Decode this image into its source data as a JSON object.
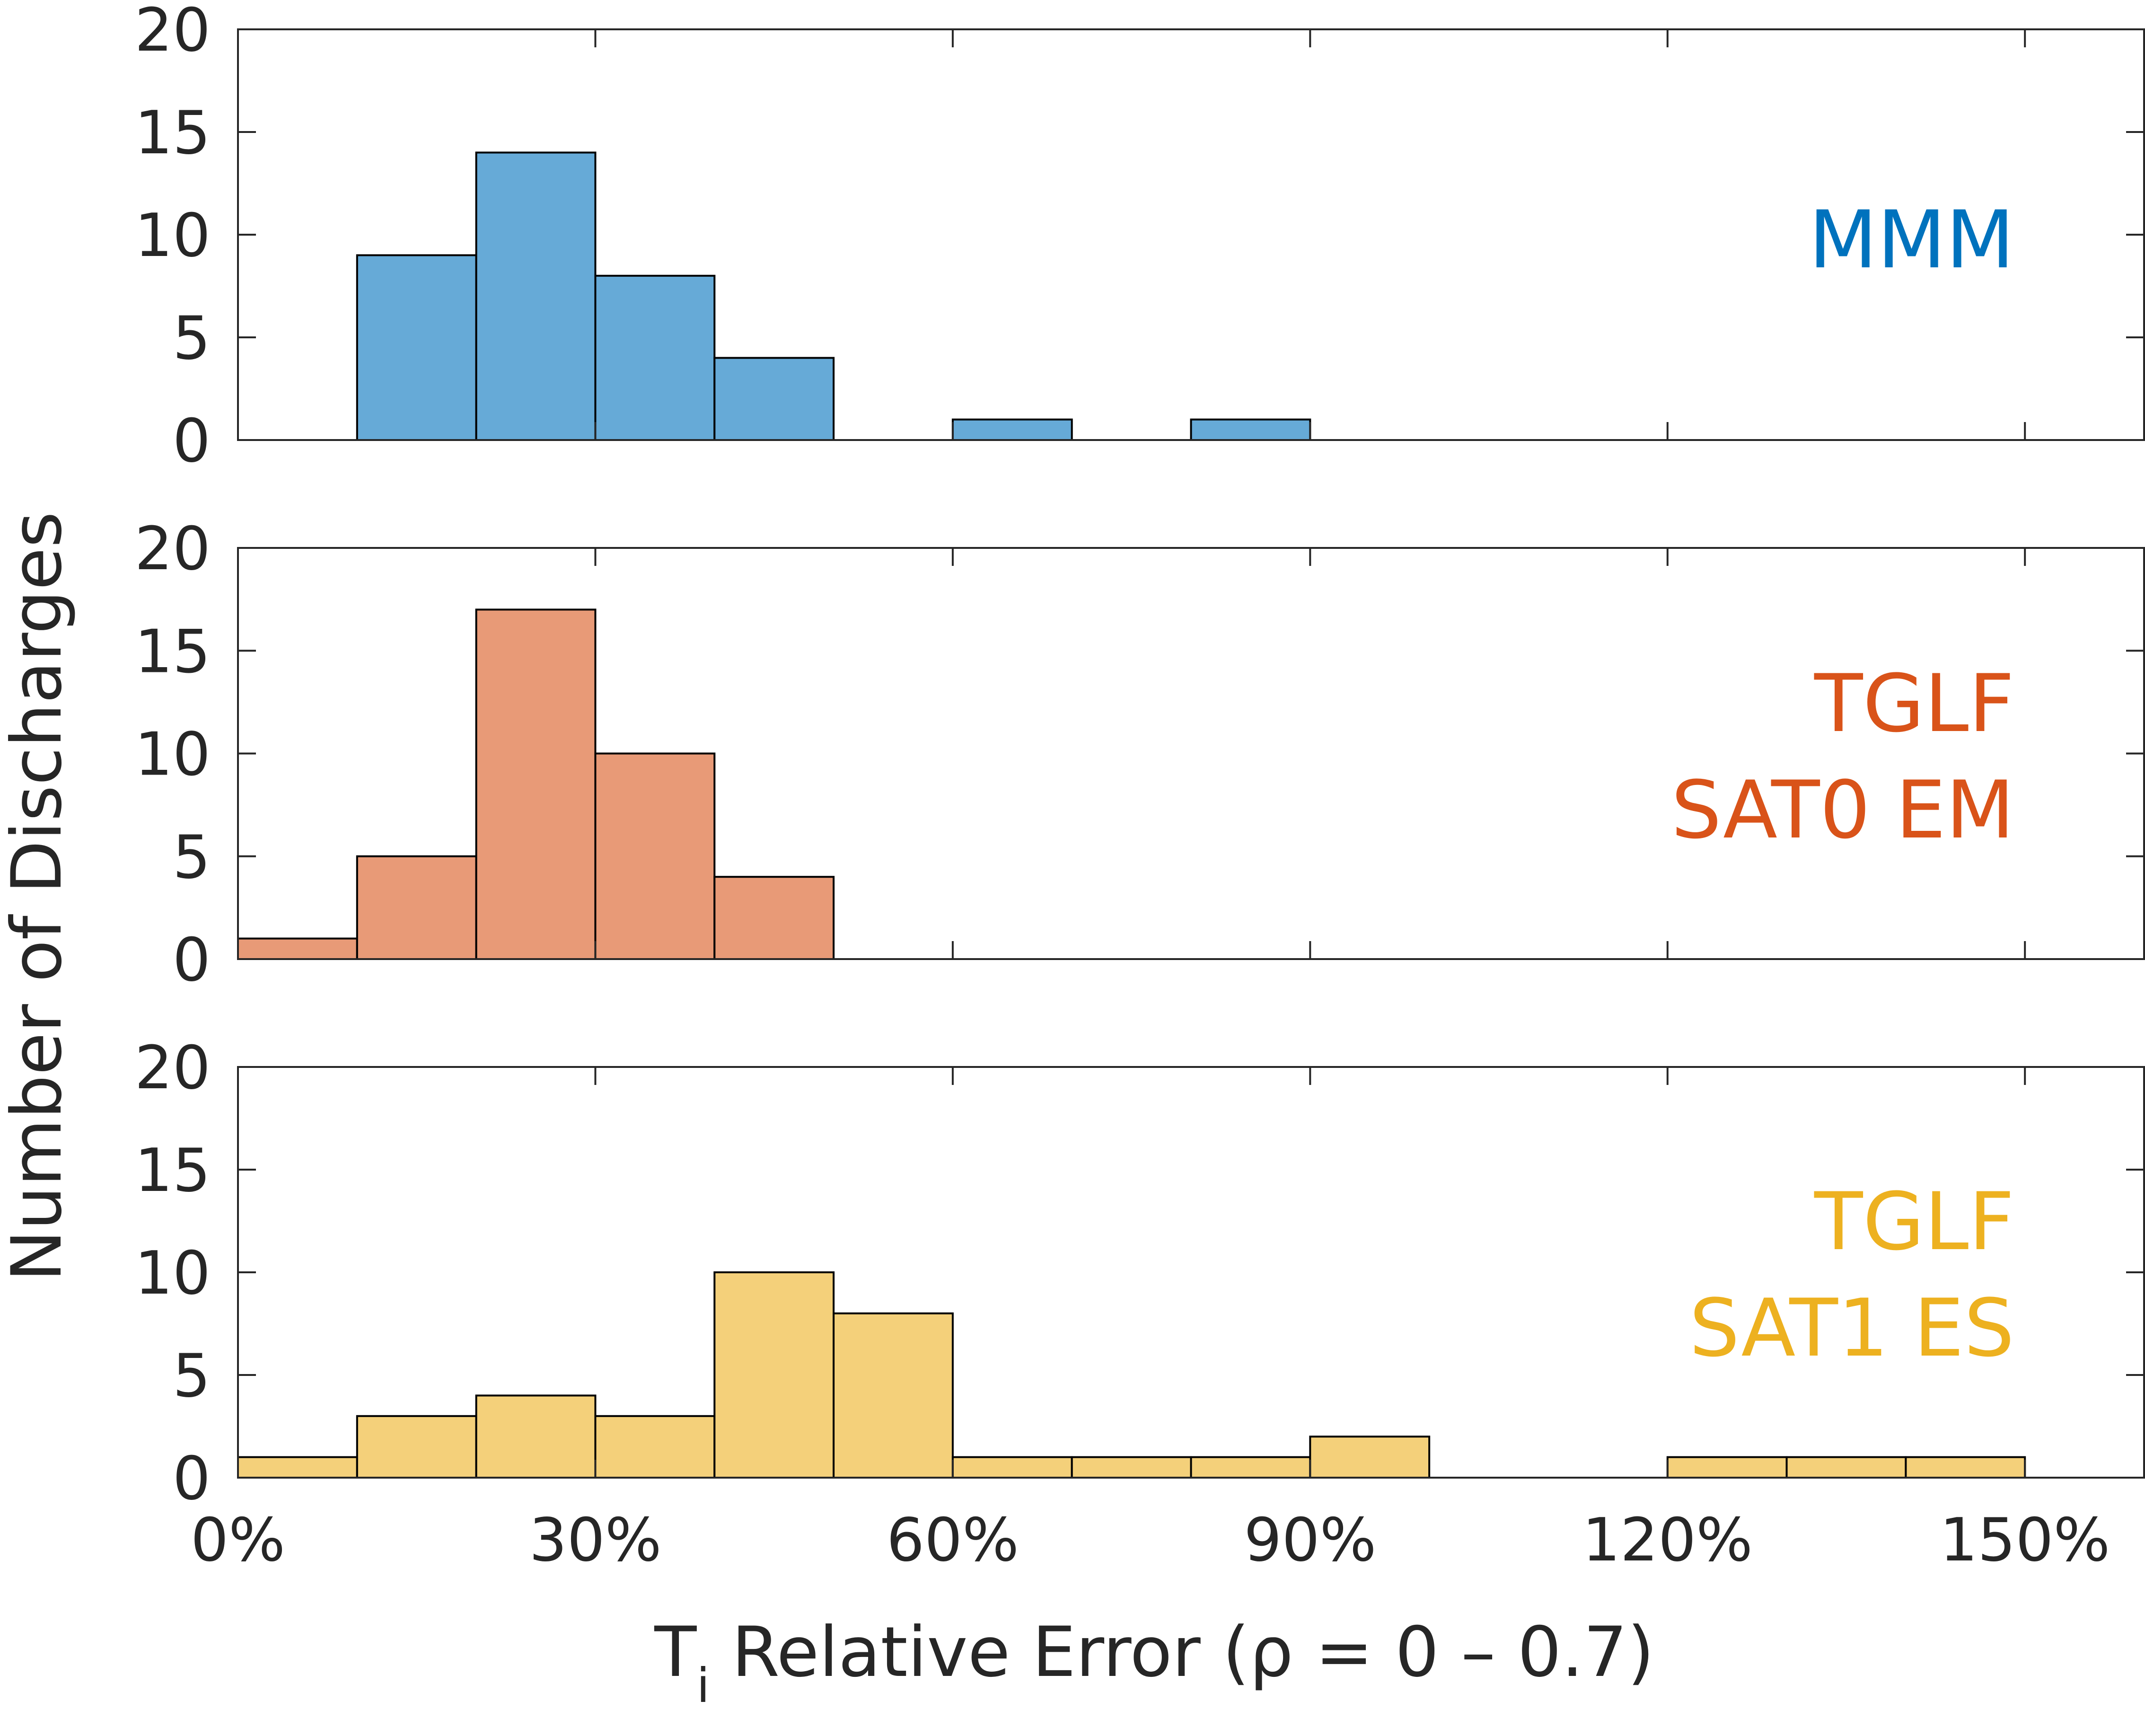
{
  "chart_data": {
    "type": "bar",
    "layout": "three stacked histogram panels sharing the x axis",
    "xlabel_main": "T",
    "xlabel_subscript": "i",
    "xlabel_rest": " Relative Error (ρ = 0 – 0.7)",
    "ylabel": "Number of Discharges",
    "xlim": [
      0,
      160
    ],
    "ylim": [
      0,
      20
    ],
    "bin_width": 10,
    "x_ticks": [
      0,
      30,
      60,
      90,
      120,
      150
    ],
    "x_tick_labels": [
      "0%",
      "30%",
      "60%",
      "90%",
      "120%",
      "150%"
    ],
    "y_ticks": [
      0,
      5,
      10,
      15,
      20
    ],
    "y_tick_labels": [
      "0",
      "5",
      "10",
      "15",
      "20"
    ],
    "panels": [
      {
        "label_lines": [
          "MMM"
        ],
        "label_color": "#0072BD",
        "bar_color": "#66AAD7",
        "bins": [
          {
            "x0": 10,
            "x1": 20,
            "count": 9
          },
          {
            "x0": 20,
            "x1": 30,
            "count": 14
          },
          {
            "x0": 30,
            "x1": 40,
            "count": 8
          },
          {
            "x0": 40,
            "x1": 50,
            "count": 4
          },
          {
            "x0": 60,
            "x1": 70,
            "count": 1
          },
          {
            "x0": 80,
            "x1": 90,
            "count": 1
          }
        ]
      },
      {
        "label_lines": [
          "TGLF",
          "SAT0 EM"
        ],
        "label_color": "#D95319",
        "bar_color": "#E89A77",
        "bins": [
          {
            "x0": 0,
            "x1": 10,
            "count": 1
          },
          {
            "x0": 10,
            "x1": 20,
            "count": 5
          },
          {
            "x0": 20,
            "x1": 30,
            "count": 17
          },
          {
            "x0": 30,
            "x1": 40,
            "count": 10
          },
          {
            "x0": 40,
            "x1": 50,
            "count": 4
          }
        ]
      },
      {
        "label_lines": [
          "TGLF",
          "SAT1 ES"
        ],
        "label_color": "#EDB120",
        "bar_color": "#F4D07A",
        "bins": [
          {
            "x0": 0,
            "x1": 10,
            "count": 1
          },
          {
            "x0": 10,
            "x1": 20,
            "count": 3
          },
          {
            "x0": 20,
            "x1": 30,
            "count": 4
          },
          {
            "x0": 30,
            "x1": 40,
            "count": 3
          },
          {
            "x0": 40,
            "x1": 50,
            "count": 10
          },
          {
            "x0": 50,
            "x1": 60,
            "count": 8
          },
          {
            "x0": 60,
            "x1": 70,
            "count": 1
          },
          {
            "x0": 70,
            "x1": 80,
            "count": 1
          },
          {
            "x0": 80,
            "x1": 90,
            "count": 1
          },
          {
            "x0": 90,
            "x1": 100,
            "count": 2
          },
          {
            "x0": 120,
            "x1": 130,
            "count": 1
          },
          {
            "x0": 130,
            "x1": 140,
            "count": 1
          },
          {
            "x0": 140,
            "x1": 150,
            "count": 1
          }
        ]
      }
    ]
  }
}
